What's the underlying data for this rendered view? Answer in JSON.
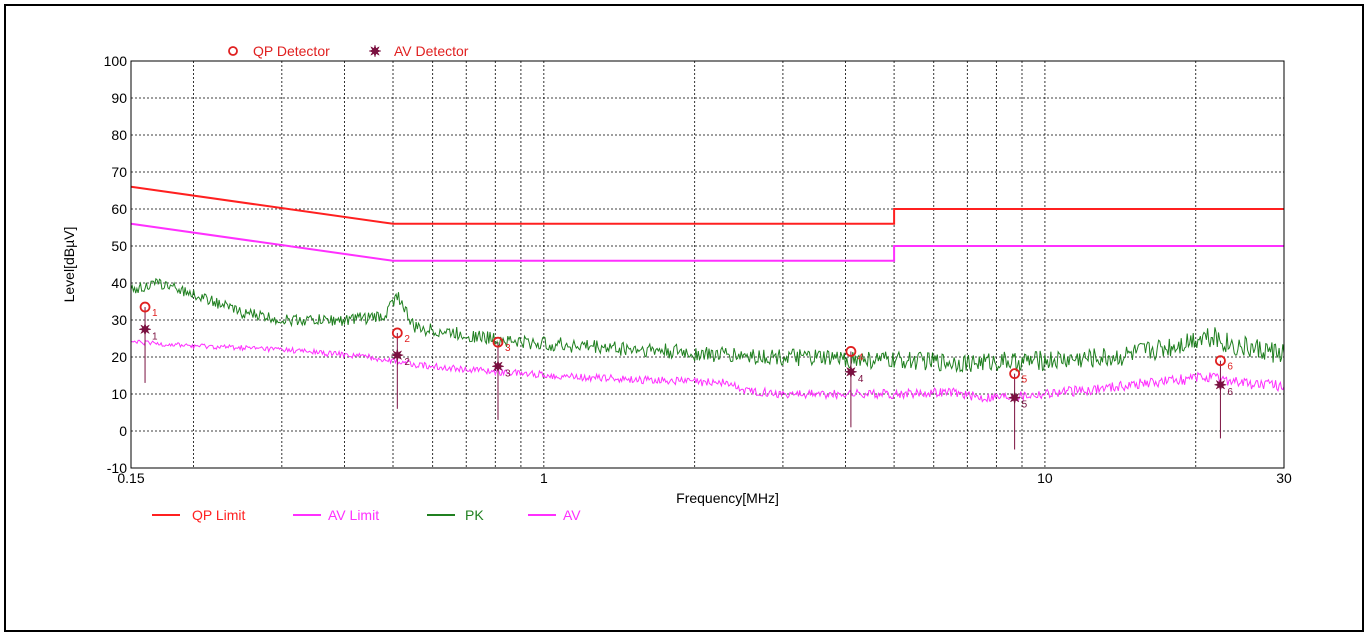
{
  "chart_data": {
    "type": "line",
    "xlabel": "Frequency[MHz]",
    "ylabel": "Level[dBµV]",
    "xscale": "log",
    "xlim": [
      0.15,
      30
    ],
    "ylim": [
      -10,
      100
    ],
    "grid": true,
    "xtick_labels": [
      "0.15",
      "1",
      "10",
      "30"
    ],
    "xtick_values": [
      0.15,
      1,
      10,
      30
    ],
    "ytick_values": [
      -10,
      0,
      10,
      20,
      30,
      40,
      50,
      60,
      70,
      80,
      90,
      100
    ],
    "ytick_labels": [
      "-10",
      "0",
      "10",
      "20",
      "30",
      "40",
      "50",
      "60",
      "70",
      "80",
      "90",
      "100"
    ],
    "detector_legend": [
      {
        "name": "QP Detector",
        "symbol": "circle",
        "color": "#e02020"
      },
      {
        "name": "AV Detector",
        "symbol": "star",
        "color": "#7a1040"
      }
    ],
    "bottom_legend": [
      {
        "name": "QP Limit",
        "color": "#ff2020"
      },
      {
        "name": "AV Limit",
        "color": "#ff30ff"
      },
      {
        "name": "PK",
        "color": "#208020"
      },
      {
        "name": "AV",
        "color": "#ff30ff"
      }
    ],
    "series": [
      {
        "key": "qp_limit",
        "color": "#ff2020",
        "points": [
          [
            0.15,
            66
          ],
          [
            0.5,
            56
          ],
          [
            5,
            56
          ],
          [
            5,
            60
          ],
          [
            30,
            60
          ]
        ]
      },
      {
        "key": "av_limit",
        "color": "#ff30ff",
        "points": [
          [
            0.15,
            56
          ],
          [
            0.5,
            46
          ],
          [
            5,
            46
          ],
          [
            5,
            50
          ],
          [
            30,
            50
          ]
        ]
      },
      {
        "key": "pk",
        "color": "#208020",
        "points": [
          [
            0.15,
            38
          ],
          [
            0.17,
            40
          ],
          [
            0.2,
            37
          ],
          [
            0.25,
            32
          ],
          [
            0.3,
            30
          ],
          [
            0.4,
            30
          ],
          [
            0.48,
            31
          ],
          [
            0.51,
            37
          ],
          [
            0.55,
            28
          ],
          [
            0.7,
            26
          ],
          [
            0.9,
            24
          ],
          [
            1.2,
            23
          ],
          [
            1.6,
            22
          ],
          [
            2,
            21
          ],
          [
            3,
            20
          ],
          [
            4,
            19.5
          ],
          [
            5,
            19
          ],
          [
            7,
            18.5
          ],
          [
            10,
            19
          ],
          [
            14,
            20
          ],
          [
            18,
            23
          ],
          [
            21,
            26
          ],
          [
            24,
            23
          ],
          [
            30,
            21
          ]
        ]
      },
      {
        "key": "av",
        "color": "#ff30ff",
        "points": [
          [
            0.15,
            24
          ],
          [
            0.2,
            23
          ],
          [
            0.3,
            22
          ],
          [
            0.45,
            20
          ],
          [
            0.5,
            19
          ],
          [
            0.55,
            18
          ],
          [
            0.8,
            16
          ],
          [
            1.2,
            14.5
          ],
          [
            1.8,
            13.5
          ],
          [
            2.3,
            13
          ],
          [
            2.5,
            11
          ],
          [
            3,
            10
          ],
          [
            5,
            10
          ],
          [
            6.5,
            10.5
          ],
          [
            7.5,
            9
          ],
          [
            9,
            9.5
          ],
          [
            12,
            11
          ],
          [
            16,
            13
          ],
          [
            21,
            14.5
          ],
          [
            25,
            13
          ],
          [
            30,
            12
          ]
        ]
      }
    ],
    "markers": [
      {
        "label": "1",
        "freq": 0.16,
        "qp": 33.5,
        "av": 27.5,
        "stem_bottom": 13
      },
      {
        "label": "2",
        "freq": 0.51,
        "qp": 26.5,
        "av": 20.5,
        "stem_bottom": 6
      },
      {
        "label": "3",
        "freq": 0.81,
        "qp": 24,
        "av": 17.5,
        "stem_bottom": 3
      },
      {
        "label": "4",
        "freq": 4.1,
        "qp": 21.5,
        "av": 16,
        "stem_bottom": 1
      },
      {
        "label": "5",
        "freq": 8.7,
        "qp": 15.5,
        "av": 9,
        "stem_bottom": -5
      },
      {
        "label": "6",
        "freq": 22.4,
        "qp": 19,
        "av": 12.5,
        "stem_bottom": -2
      }
    ]
  }
}
